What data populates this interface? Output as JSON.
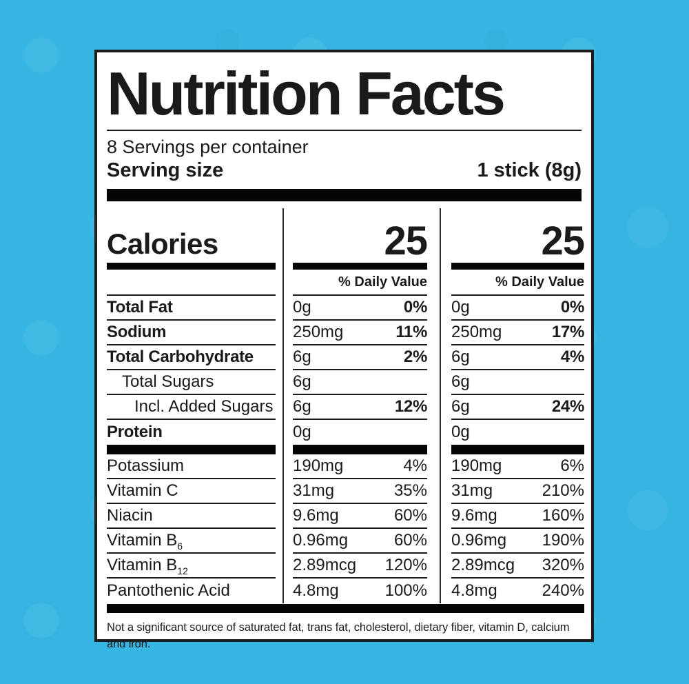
{
  "colors": {
    "background": "#36b5e2",
    "label_background": "#ffffff",
    "text": "#1a1a1a",
    "bars": "#050505"
  },
  "label": {
    "title": "Nutrition Facts",
    "servings_per_container": "8 Servings per container",
    "serving_size_label": "Serving size",
    "serving_size_value": "1 stick (8g)",
    "calories_label": "Calories",
    "columns": [
      {
        "calories": "25",
        "daily_value_header": "% Daily Value"
      },
      {
        "calories": "25",
        "daily_value_header": "% Daily Value"
      }
    ],
    "rows": [
      {
        "name": "Total Fat",
        "amount1": "0g",
        "dv1": "0%",
        "amount2": "0g",
        "dv2": "0%"
      },
      {
        "name": "Sodium",
        "amount1": "250mg",
        "dv1": "11%",
        "amount2": "250mg",
        "dv2": "17%"
      },
      {
        "name": "Total Carbohydrate",
        "amount1": "6g",
        "dv1": "2%",
        "amount2": "6g",
        "dv2": "4%"
      },
      {
        "name": "Total Sugars",
        "amount1": "6g",
        "dv1": "",
        "amount2": "6g",
        "dv2": ""
      },
      {
        "name": "Incl. Added Sugars",
        "amount1": "6g",
        "dv1": "12%",
        "amount2": "6g",
        "dv2": "24%"
      },
      {
        "name": "Protein",
        "amount1": "0g",
        "dv1": "",
        "amount2": "0g",
        "dv2": ""
      }
    ],
    "vitamins": [
      {
        "name": "Potassium",
        "amount1": "190mg",
        "dv1": "4%",
        "amount2": "190mg",
        "dv2": "6%"
      },
      {
        "name": "Vitamin C",
        "amount1": "31mg",
        "dv1": "35%",
        "amount2": "31mg",
        "dv2": "210%"
      },
      {
        "name": "Niacin",
        "amount1": "9.6mg",
        "dv1": "60%",
        "amount2": "9.6mg",
        "dv2": "160%"
      },
      {
        "name": "Vitamin B",
        "subscript": "6",
        "amount1": "0.96mg",
        "dv1": "60%",
        "amount2": "0.96mg",
        "dv2": "190%"
      },
      {
        "name": "Vitamin B",
        "subscript": "12",
        "amount1": "2.89mcg",
        "dv1": "120%",
        "amount2": "2.89mcg",
        "dv2": "320%"
      },
      {
        "name": "Pantothenic Acid",
        "amount1": "4.8mg",
        "dv1": "100%",
        "amount2": "4.8mg",
        "dv2": "240%"
      }
    ],
    "footnote": "Not a significant source of saturated fat, trans fat, cholesterol, dietary fiber, vitamin D, calcium and iron."
  }
}
